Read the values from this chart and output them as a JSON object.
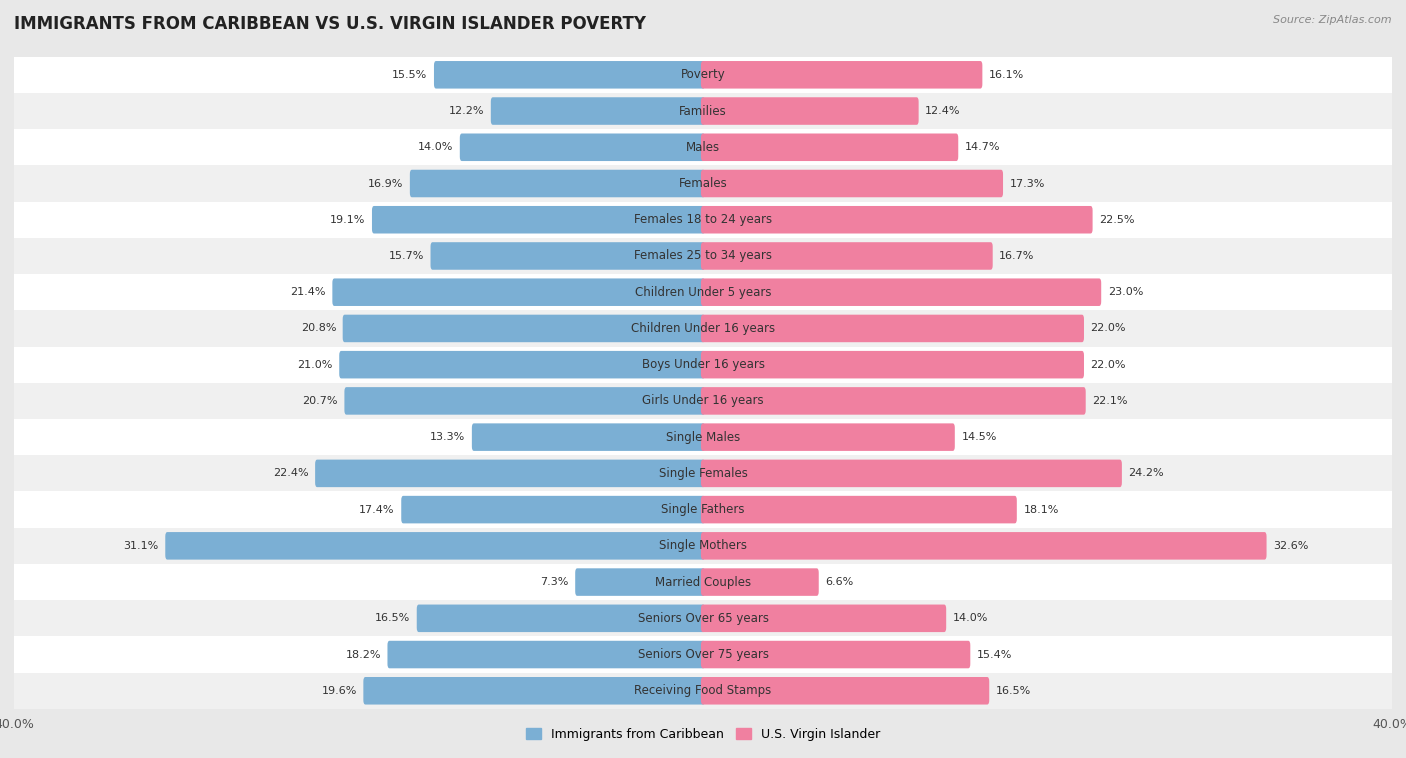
{
  "title": "IMMIGRANTS FROM CARIBBEAN VS U.S. VIRGIN ISLANDER POVERTY",
  "source": "Source: ZipAtlas.com",
  "categories": [
    "Poverty",
    "Families",
    "Males",
    "Females",
    "Females 18 to 24 years",
    "Females 25 to 34 years",
    "Children Under 5 years",
    "Children Under 16 years",
    "Boys Under 16 years",
    "Girls Under 16 years",
    "Single Males",
    "Single Females",
    "Single Fathers",
    "Single Mothers",
    "Married Couples",
    "Seniors Over 65 years",
    "Seniors Over 75 years",
    "Receiving Food Stamps"
  ],
  "left_values": [
    15.5,
    12.2,
    14.0,
    16.9,
    19.1,
    15.7,
    21.4,
    20.8,
    21.0,
    20.7,
    13.3,
    22.4,
    17.4,
    31.1,
    7.3,
    16.5,
    18.2,
    19.6
  ],
  "right_values": [
    16.1,
    12.4,
    14.7,
    17.3,
    22.5,
    16.7,
    23.0,
    22.0,
    22.0,
    22.1,
    14.5,
    24.2,
    18.1,
    32.6,
    6.6,
    14.0,
    15.4,
    16.5
  ],
  "left_color": "#7bafd4",
  "right_color": "#f080a0",
  "left_label": "Immigrants from Caribbean",
  "right_label": "U.S. Virgin Islander",
  "xlim": 40.0,
  "row_colors": [
    "#ffffff",
    "#f0f0f0"
  ],
  "bg_color": "#e8e8e8",
  "title_fontsize": 12,
  "label_fontsize": 8.5,
  "value_fontsize": 8,
  "bar_height": 0.52
}
